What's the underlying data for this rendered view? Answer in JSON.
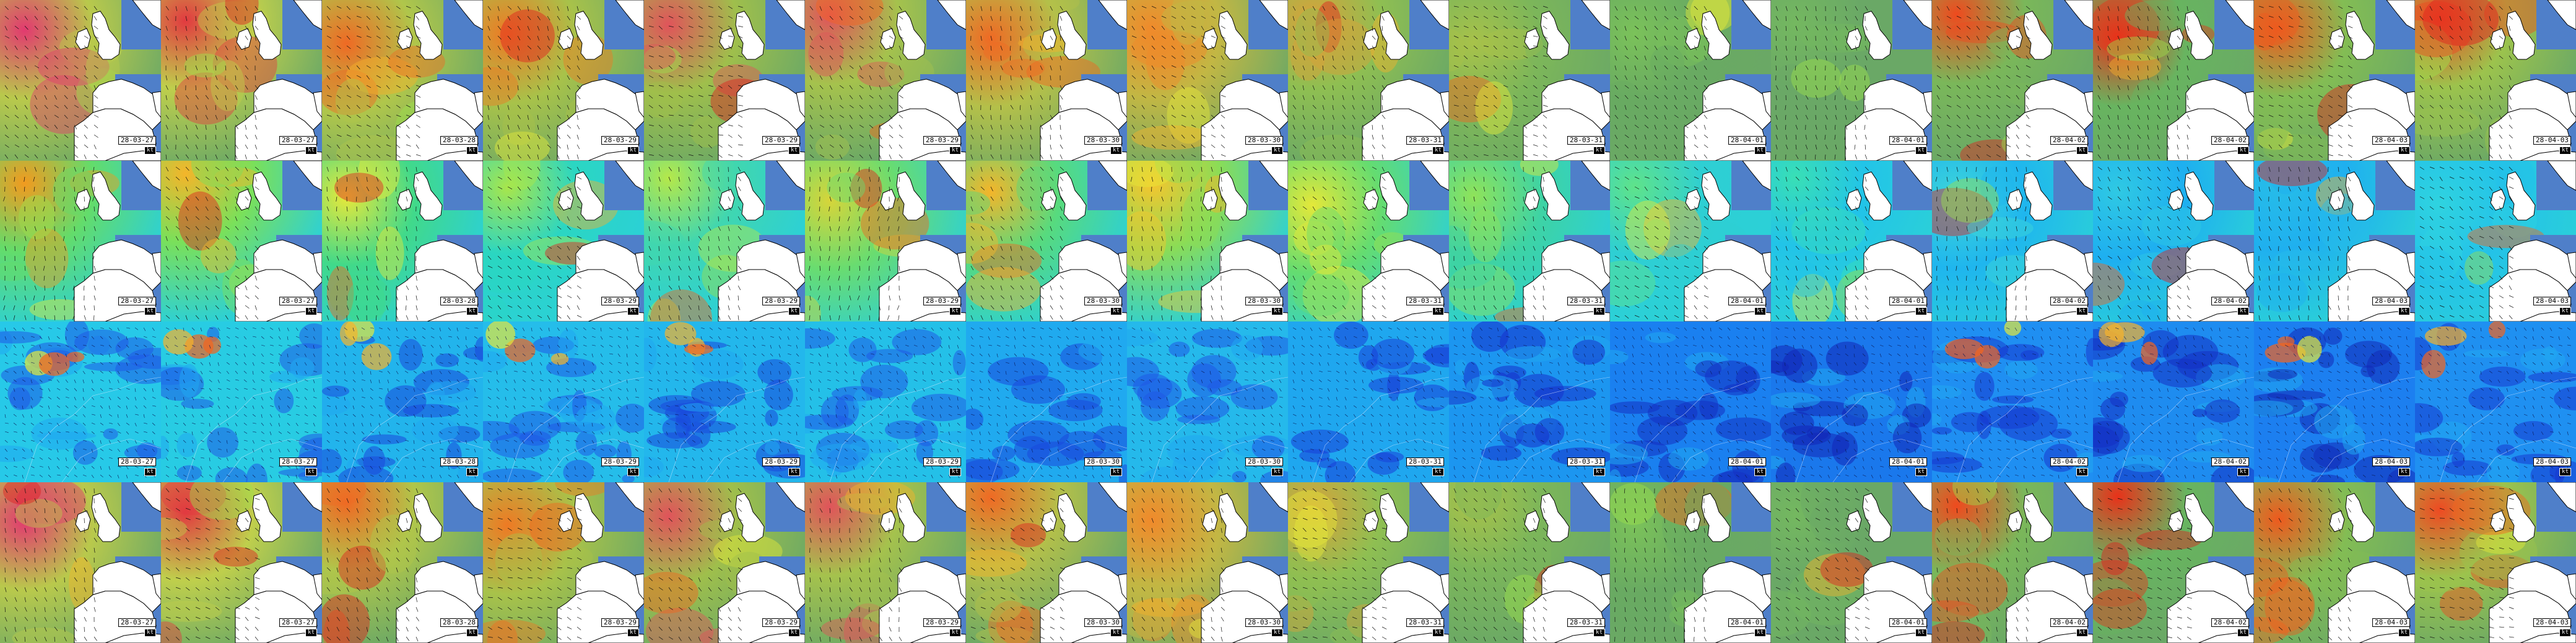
{
  "grid": {
    "columns": 16,
    "rows": 4,
    "dates": [
      "28-03-27",
      "28-03-27",
      "28-03-28",
      "28-03-29",
      "28-03-29",
      "28-03-29",
      "28-03-30",
      "28-03-30",
      "28-03-31",
      "28-03-31",
      "28-04-01",
      "28-04-01",
      "28-04-02",
      "28-04-02",
      "28-04-03",
      "28-04-03"
    ],
    "units_label": "kt",
    "row_types": [
      "regional-wind",
      "regional-gust",
      "europe-wind",
      "regional-wind"
    ]
  },
  "colors": {
    "land": "#ffffff",
    "sea_calm": "#4f7fc9",
    "coast": "#000000",
    "arrow": "#111111"
  },
  "legend_palette": [
    "#0b1c9e",
    "#1f59e6",
    "#20a8f0",
    "#2fe0e8",
    "#4fe39a",
    "#9be14b",
    "#e4e83a",
    "#f7b22b",
    "#f3641e",
    "#e11f1f",
    "#c81a6a",
    "#e85ad0"
  ]
}
